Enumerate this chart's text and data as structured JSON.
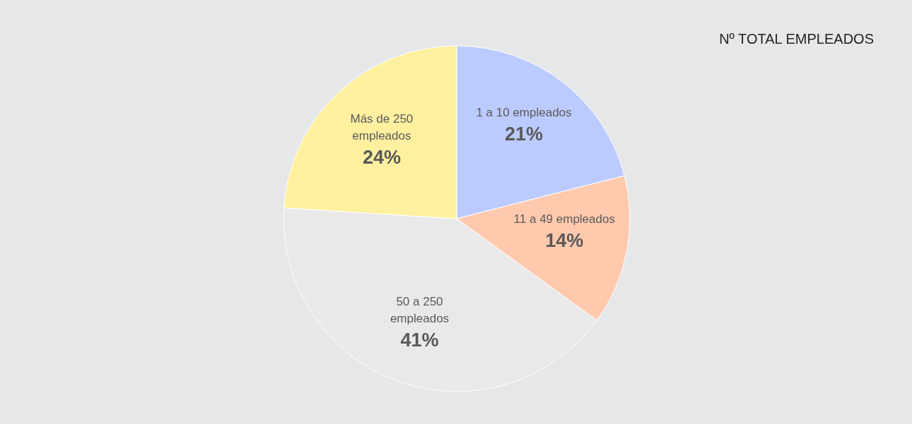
{
  "chart_data": {
    "type": "pie",
    "title": "Nº TOTAL EMPLEADOS",
    "categories": [
      "1 a 10 empleados",
      "11 a 49 empleados",
      "50 a 250 empleados",
      "Más de 250 empleados"
    ],
    "values": [
      21,
      14,
      41,
      24
    ],
    "value_labels": [
      "21%",
      "14%",
      "41%",
      "24%"
    ],
    "colors": [
      "#bccbff",
      "#ffc9ae",
      "#e9e9e9",
      "#fff0a0"
    ]
  }
}
